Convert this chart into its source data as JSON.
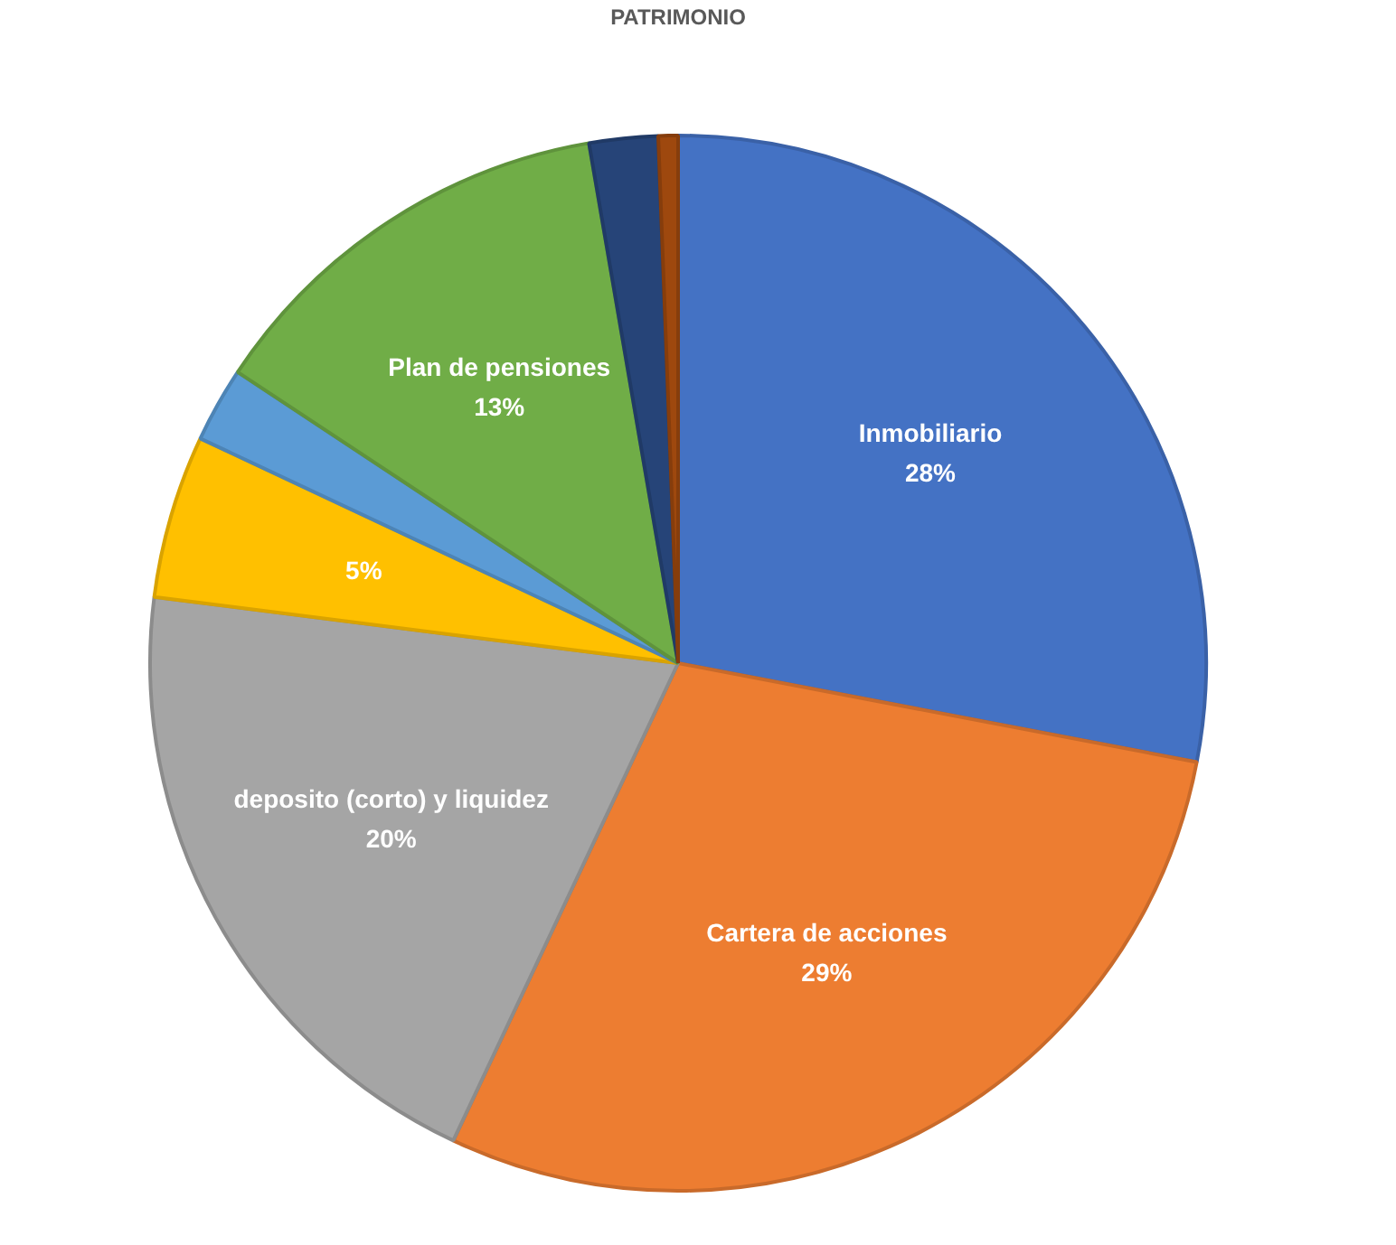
{
  "chart_data": {
    "type": "pie",
    "title": "PATRIMONIO",
    "categories": [
      "Inmobiliario",
      "Cartera de acciones",
      "deposito (corto) y liquidez",
      null,
      null,
      "Plan de pensiones",
      null,
      null
    ],
    "values": [
      28,
      29,
      20,
      5,
      2.3,
      13,
      2.1,
      0.6
    ],
    "colors": [
      "#4472c4",
      "#ed7d31",
      "#a5a5a5",
      "#ffc000",
      "#5b9bd5",
      "#70ad47",
      "#264478",
      "#9e480e"
    ],
    "value_labels": [
      "28%",
      "29%",
      "20%",
      "5%",
      null,
      "13%",
      null,
      null
    ],
    "legend": false
  }
}
